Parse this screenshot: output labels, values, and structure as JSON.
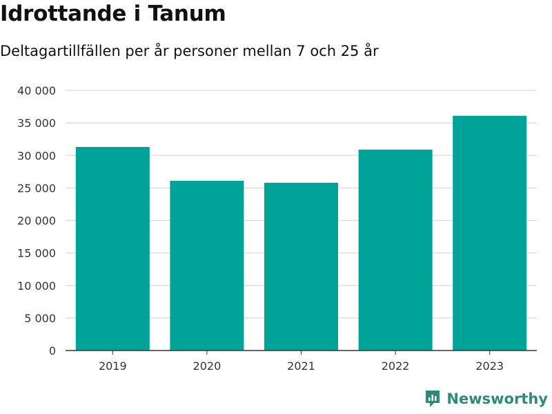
{
  "header": {
    "title": "Idrottande i Tanum",
    "subtitle": "Deltagartillfällen per år personer mellan 7 och 25 år"
  },
  "brand": {
    "name": "Newsworthy",
    "icon": "newsworthy-logo-icon",
    "color": "#2e8b7a"
  },
  "chart_data": {
    "type": "bar",
    "title": "Idrottande i Tanum",
    "subtitle": "Deltagartillfällen per år personer mellan 7 och 25 år",
    "xlabel": "",
    "ylabel": "",
    "categories": [
      "2019",
      "2020",
      "2021",
      "2022",
      "2023"
    ],
    "values": [
      31300,
      26100,
      25800,
      30900,
      36100
    ],
    "ylim": [
      0,
      40000
    ],
    "yticks": [
      0,
      5000,
      10000,
      15000,
      20000,
      25000,
      30000,
      35000,
      40000
    ],
    "ytick_labels": [
      "0",
      "5 000",
      "10 000",
      "15 000",
      "20 000",
      "25 000",
      "30 000",
      "35 000",
      "40 000"
    ],
    "bar_color": "#00a398",
    "grid": true
  }
}
